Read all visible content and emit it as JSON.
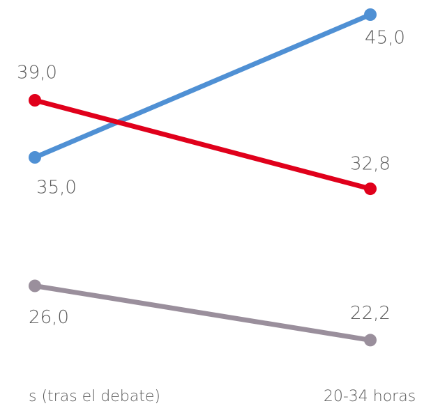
{
  "chart_data": {
    "type": "slope",
    "categories": [
      "s (tras el debate)",
      "20-34 horas"
    ],
    "series": [
      {
        "color": "#4f90d4",
        "values": [
          35.0,
          45.0
        ],
        "value_labels": [
          "35,0",
          "45,0"
        ]
      },
      {
        "color": "#e0001b",
        "values": [
          39.0,
          32.8
        ],
        "value_labels": [
          "39,0",
          "32,8"
        ]
      },
      {
        "color": "#9a8f9c",
        "values": [
          26.0,
          22.2
        ],
        "value_labels": [
          "26,0",
          "22,2"
        ]
      }
    ]
  }
}
